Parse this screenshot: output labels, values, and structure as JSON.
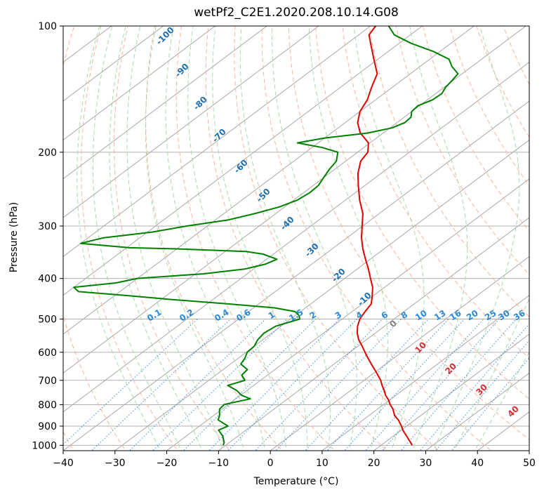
{
  "chart_data": {
    "type": "line",
    "subtype": "skew-t log-p diagram",
    "title": "wetPf2_C2E1.2020.208.10.14.G08",
    "xlabel": "Temperature (°C)",
    "ylabel": "Pressure (hPa)",
    "xlim": [
      -40,
      50
    ],
    "ylim": [
      1030,
      100
    ],
    "y_scale": "log",
    "grid": true,
    "x_ticks": [
      -40,
      -30,
      -20,
      -10,
      0,
      10,
      20,
      30,
      40,
      50
    ],
    "y_ticks": [
      100,
      200,
      300,
      400,
      500,
      600,
      700,
      800,
      900,
      1000
    ],
    "isotherm_labels": [
      -100,
      -90,
      -80,
      -70,
      -60,
      -50,
      -40,
      -30,
      -20,
      -10,
      0,
      10,
      20,
      30,
      40
    ],
    "mixing_ratio_labels": [
      "0.1",
      "0.2",
      "0.4",
      "0.6",
      "1",
      "1.5",
      "2",
      "3",
      "4",
      "6",
      "8",
      "10",
      "13",
      "16",
      "20",
      "25",
      "30",
      "36"
    ],
    "series": [
      {
        "color": "#e00000",
        "pressure": [
          1000,
          985,
          950,
          920,
          900,
          870,
          850,
          820,
          800,
          780,
          760,
          740,
          720,
          700,
          670,
          640,
          610,
          580,
          560,
          540,
          520,
          500,
          480,
          460,
          440,
          420,
          400,
          380,
          360,
          340,
          320,
          300,
          280,
          260,
          240,
          225,
          210,
          200,
          190,
          180,
          170,
          160,
          150,
          140,
          130,
          120,
          110,
          105,
          100
        ],
        "temperature": [
          26.0,
          25.0,
          22.5,
          20.3,
          19.0,
          16.8,
          15.0,
          13.0,
          11.3,
          9.8,
          8.0,
          6.5,
          4.8,
          3.2,
          0.3,
          -2.8,
          -6.0,
          -9.2,
          -11.5,
          -13.5,
          -15.2,
          -16.6,
          -17.5,
          -18.3,
          -20.2,
          -22.3,
          -25.0,
          -27.8,
          -30.9,
          -34.1,
          -37.2,
          -40.1,
          -43.2,
          -47.3,
          -51.3,
          -54.4,
          -57.1,
          -58.0,
          -60.3,
          -64.4,
          -67.6,
          -70.0,
          -71.6,
          -74.0,
          -76.4,
          -80.8,
          -85.5,
          -88.0,
          -89.0
        ]
      },
      {
        "color": "#008000",
        "pressure": [
          1000,
          985,
          950,
          920,
          900,
          870,
          850,
          820,
          800,
          790,
          775,
          760,
          740,
          720,
          700,
          680,
          660,
          640,
          620,
          600,
          580,
          560,
          540,
          520,
          500,
          490,
          480,
          470,
          460,
          450,
          440,
          430,
          420,
          410,
          400,
          390,
          380,
          370,
          360,
          350,
          345,
          340,
          338,
          330,
          320,
          310,
          300,
          290,
          280,
          270,
          260,
          250,
          240,
          230,
          220,
          210,
          200,
          195,
          190,
          185,
          180,
          175,
          170,
          165,
          160,
          155,
          150,
          145,
          140,
          135,
          130,
          125,
          120,
          115,
          110,
          105,
          100
        ],
        "temperature": [
          -10.5,
          -11.0,
          -13.0,
          -15.3,
          -14.5,
          -18.0,
          -18.8,
          -20.5,
          -20.8,
          -19.5,
          -17.2,
          -19.8,
          -22.0,
          -25.0,
          -23.0,
          -25.0,
          -25.3,
          -28.0,
          -28.7,
          -29.8,
          -30.0,
          -31.0,
          -31.5,
          -31.0,
          -28.2,
          -29.3,
          -31.0,
          -36.0,
          -46.0,
          -57.0,
          -67.0,
          -78.0,
          -80.0,
          -73.0,
          -70.0,
          -58.5,
          -51.7,
          -49.0,
          -48.0,
          -52.0,
          -56.0,
          -70.0,
          -79.5,
          -90.0,
          -87.0,
          -79.0,
          -74.0,
          -67.5,
          -64.0,
          -61.0,
          -59.3,
          -58.8,
          -59.0,
          -60.0,
          -61.0,
          -61.8,
          -63.8,
          -68.0,
          -74.0,
          -70.0,
          -63.0,
          -59.6,
          -58.5,
          -58.7,
          -60.0,
          -60.3,
          -59.0,
          -58.8,
          -59.7,
          -60.2,
          -60.8,
          -63.8,
          -66.3,
          -71.3,
          -77.7,
          -83.1,
          -86.5
        ]
      }
    ]
  }
}
